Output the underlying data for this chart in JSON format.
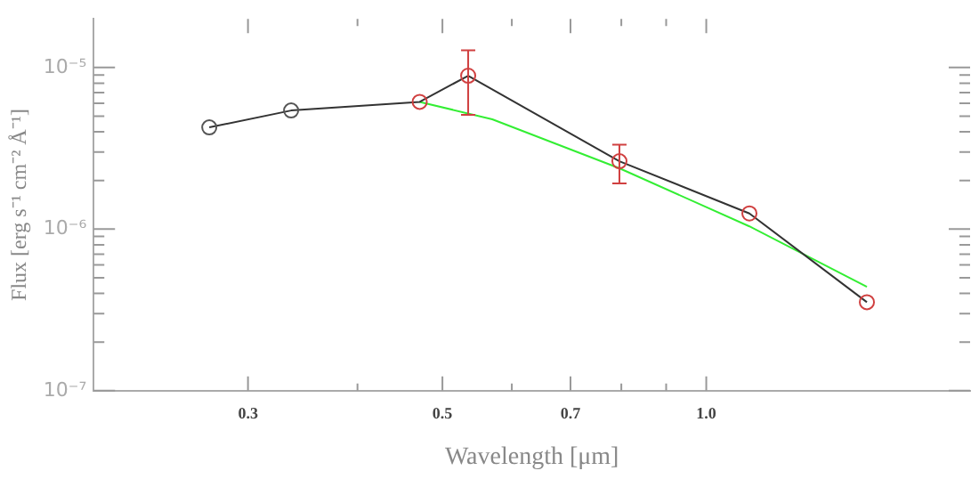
{
  "chart_data": {
    "type": "line",
    "xlabel": "Wavelength [μm]",
    "ylabel": "Flux [erg s⁻¹ cm⁻² Å⁻¹]",
    "log": "xy",
    "grid": false,
    "legend": false,
    "line_style": "solid",
    "xlim": [
      0.2,
      2.0
    ],
    "ylim": [
      1e-07,
      2e-05
    ],
    "xticks": [
      0.3,
      {
        "value": 0.4,
        "label": null
      },
      0.5,
      {
        "value": 0.6,
        "label": null
      },
      0.7,
      {
        "value": 0.8,
        "label": null
      },
      {
        "value": 0.9,
        "label": null
      },
      {
        "value": 1,
        "label": "1.0"
      }
    ],
    "yticks": [
      {
        "value": 1e-07,
        "label": "10⁻⁷"
      },
      {
        "value": 2e-07,
        "label": null
      },
      {
        "value": 3e-07,
        "label": null
      },
      {
        "value": 4e-07,
        "label": null
      },
      {
        "value": 5e-07,
        "label": null
      },
      {
        "value": 6e-07,
        "label": null
      },
      {
        "value": 7e-07,
        "label": null
      },
      {
        "value": 8e-07,
        "label": null
      },
      {
        "value": 9e-07,
        "label": null
      },
      {
        "value": 1e-06,
        "label": "10⁻⁶"
      },
      {
        "value": 2e-06,
        "label": null
      },
      {
        "value": 3e-06,
        "label": null
      },
      {
        "value": 4e-06,
        "label": null
      },
      {
        "value": 5e-06,
        "label": null
      },
      {
        "value": 6e-06,
        "label": null
      },
      {
        "value": 7e-06,
        "label": null
      },
      {
        "value": 8e-06,
        "label": null
      },
      {
        "value": 9e-06,
        "label": null
      },
      {
        "value": 1e-05,
        "label": "10⁻⁵"
      }
    ],
    "series": [
      {
        "color": "#333333",
        "marker": "circle",
        "x": [
          0.271,
          0.336,
          0.471,
          0.535,
          0.796,
          1.12,
          1.525
        ],
        "values": [
          4.26e-06,
          5.42e-06,
          6.13e-06,
          8.9e-06,
          2.63e-06,
          1.25e-06,
          3.53e-07
        ],
        "colors": [
          "#555555",
          "#555555",
          "#d04040",
          "#d04040",
          "#d04040",
          "#d04040",
          "#d04040"
        ],
        "errors": [
          null,
          null,
          null,
          [
            5.1e-06,
            1.28e-05
          ],
          [
            1.92e-06,
            3.33e-06
          ],
          null,
          null
        ]
      },
      {
        "color": "#33ee33",
        "marker": "none",
        "x": [
          0.471,
          0.57,
          0.796,
          1.12,
          1.525
        ],
        "values": [
          6.13e-06,
          4.78e-06,
          2.38e-06,
          1.04e-06,
          4.4e-07
        ]
      }
    ]
  }
}
